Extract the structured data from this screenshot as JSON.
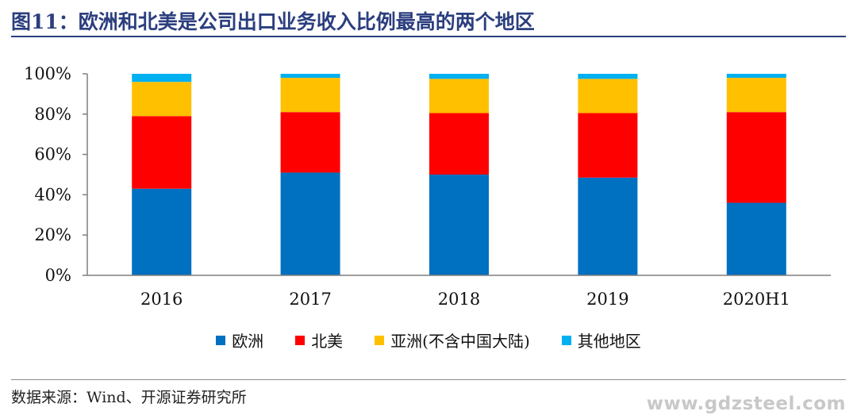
{
  "title": "图11：欧洲和北美是公司出口业务收入比例最高的两个地区",
  "source": "数据来源：Wind、开源证券研究所",
  "watermark": "www.gdzsteel.com",
  "colors": {
    "title": "#2b3e7e"
  },
  "chart_data": {
    "type": "bar",
    "stacked": true,
    "categories": [
      "2016",
      "2017",
      "2018",
      "2019",
      "2020H1"
    ],
    "series": [
      {
        "name": "欧洲",
        "color": "#0070c0",
        "values": [
          43,
          51,
          50,
          48.5,
          36
        ]
      },
      {
        "name": "北美",
        "color": "#ff0000",
        "values": [
          36,
          30,
          30.5,
          32,
          45
        ]
      },
      {
        "name": "亚洲(不含中国大陆)",
        "color": "#ffc000",
        "values": [
          17,
          17,
          17,
          17,
          17
        ]
      },
      {
        "name": "其他地区",
        "color": "#00b0f0",
        "values": [
          4,
          2,
          2.5,
          2.5,
          2
        ]
      }
    ],
    "ylim": [
      0,
      100
    ],
    "yticks": [
      "0%",
      "20%",
      "40%",
      "60%",
      "80%",
      "100%"
    ],
    "grid": false,
    "legend": "bottom"
  }
}
